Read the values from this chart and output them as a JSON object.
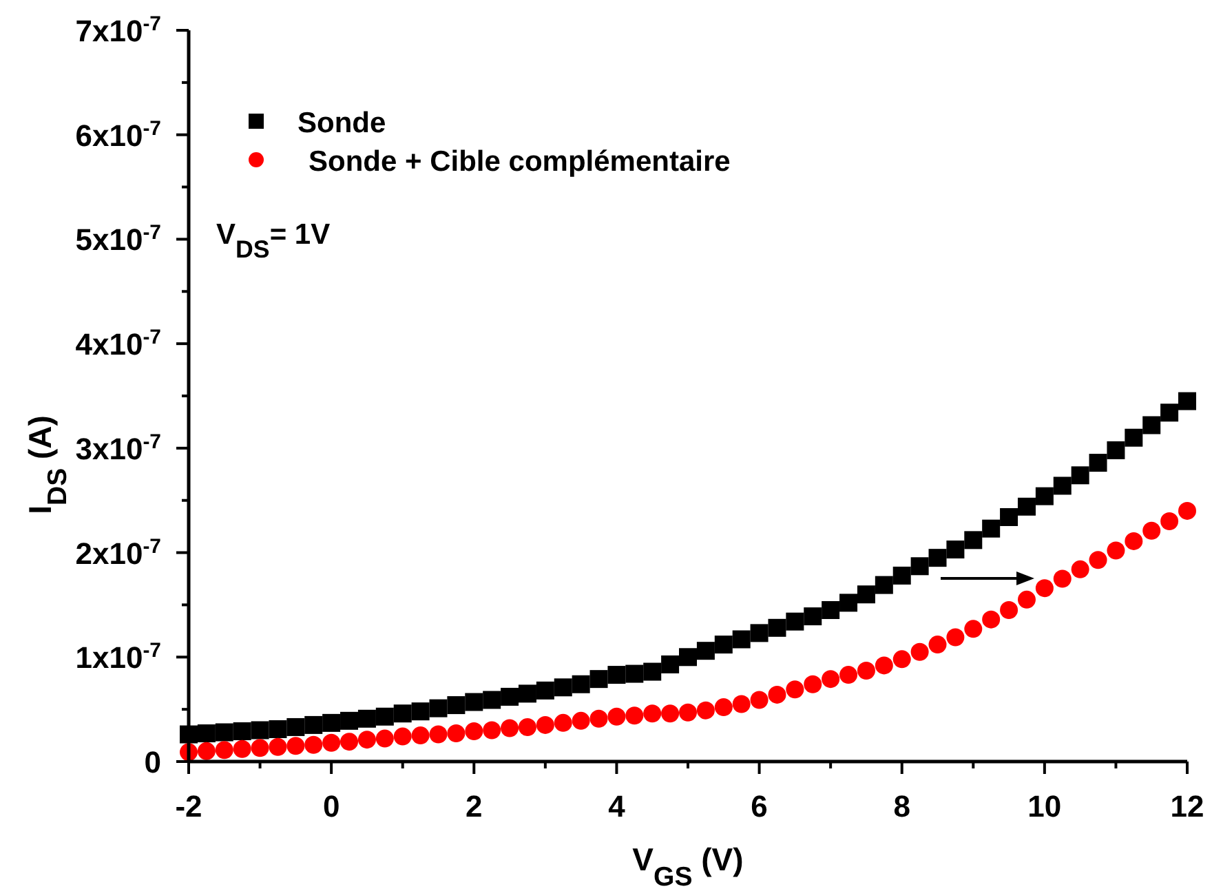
{
  "chart_data": {
    "type": "scatter",
    "xlabel": "V$_{GS}$ (V)",
    "ylabel": "I$_{DS}$ (A)",
    "annotations": [
      "V$_{DS}$= 1V"
    ],
    "xlim": [
      -2,
      12
    ],
    "ylim": [
      0,
      7e-07
    ],
    "xticks": [
      -2,
      {
        "value": -1,
        "label": null
      },
      0,
      {
        "value": 1,
        "label": null
      },
      2,
      {
        "value": 3,
        "label": null
      },
      4,
      {
        "value": 5,
        "label": null
      },
      6,
      {
        "value": 7,
        "label": null
      },
      8,
      {
        "value": 9,
        "label": null
      },
      10,
      {
        "value": 11,
        "label": null
      },
      12
    ],
    "yticks": [
      0,
      {
        "value": 5e-08,
        "label": null
      },
      {
        "value": 1e-07,
        "label": "1x10$^{-7}$"
      },
      {
        "value": 1.5e-07,
        "label": null
      },
      {
        "value": 2e-07,
        "label": "2x10$^{-7}$"
      },
      {
        "value": 2.5e-07,
        "label": null
      },
      {
        "value": 3e-07,
        "label": "3x10$^{-7}$"
      },
      {
        "value": 3.5e-07,
        "label": null
      },
      {
        "value": 4e-07,
        "label": "4x10$^{-7}$"
      },
      {
        "value": 4.5e-07,
        "label": null
      },
      {
        "value": 5e-07,
        "label": "5x10$^{-7}$"
      },
      {
        "value": 5.5e-07,
        "label": null
      },
      {
        "value": 6e-07,
        "label": "6x10$^{-7}$"
      },
      {
        "value": 6.5e-07,
        "label": null
      },
      {
        "value": 7e-07,
        "label": "7x10$^{-7}$"
      }
    ],
    "legend": "top left",
    "x": [
      -2,
      -1.75,
      -1.5,
      -1.25,
      -1,
      -0.75,
      -0.5,
      -0.25,
      0,
      0.25,
      0.5,
      0.75,
      1,
      1.25,
      1.5,
      1.75,
      2,
      2.25,
      2.5,
      2.75,
      3,
      3.25,
      3.5,
      3.75,
      4,
      4.25,
      4.5,
      4.75,
      5,
      5.25,
      5.5,
      5.75,
      6,
      6.25,
      6.5,
      6.75,
      7,
      7.25,
      7.5,
      7.75,
      8,
      8.25,
      8.5,
      8.75,
      9,
      9.25,
      9.5,
      9.75,
      10,
      10.25,
      10.5,
      10.75,
      11,
      11.25,
      11.5,
      11.75,
      12
    ],
    "series": [
      {
        "name": "Sonde",
        "color": "#000000",
        "marker": "square",
        "values": [
          2.6e-08,
          2.7e-08,
          2.8e-08,
          2.9e-08,
          3e-08,
          3.1e-08,
          3.3e-08,
          3.5e-08,
          3.7e-08,
          3.9e-08,
          4.1e-08,
          4.3e-08,
          4.6e-08,
          4.8e-08,
          5.1e-08,
          5.4e-08,
          5.7e-08,
          5.9e-08,
          6.2e-08,
          6.5e-08,
          6.8e-08,
          7.1e-08,
          7.4e-08,
          7.9e-08,
          8.3e-08,
          8.4e-08,
          8.6e-08,
          9.3e-08,
          1e-07,
          1.06e-07,
          1.12e-07,
          1.17e-07,
          1.23e-07,
          1.28e-07,
          1.34e-07,
          1.39e-07,
          1.45e-07,
          1.52e-07,
          1.6e-07,
          1.69e-07,
          1.78e-07,
          1.87e-07,
          1.95e-07,
          2.03e-07,
          2.12e-07,
          2.23e-07,
          2.34e-07,
          2.44e-07,
          2.54e-07,
          2.64e-07,
          2.74e-07,
          2.86e-07,
          2.98e-07,
          3.1e-07,
          3.22e-07,
          3.34e-07,
          3.45e-07
        ]
      },
      {
        "name": "Sonde + Cible complémentaire",
        "color": "#ff0000",
        "marker": "circle",
        "values": [
          9e-09,
          1e-08,
          1.1e-08,
          1.2e-08,
          1.3e-08,
          1.4e-08,
          1.5e-08,
          1.6e-08,
          1.8e-08,
          1.9e-08,
          2.1e-08,
          2.2e-08,
          2.4e-08,
          2.5e-08,
          2.6e-08,
          2.7e-08,
          2.9e-08,
          3e-08,
          3.2e-08,
          3.3e-08,
          3.5e-08,
          3.7e-08,
          3.9e-08,
          4.1e-08,
          4.3e-08,
          4.4e-08,
          4.6e-08,
          4.6e-08,
          4.7e-08,
          4.9e-08,
          5.2e-08,
          5.5e-08,
          5.9e-08,
          6.4e-08,
          6.9e-08,
          7.4e-08,
          7.9e-08,
          8.3e-08,
          8.7e-08,
          9.2e-08,
          9.8e-08,
          1.05e-07,
          1.12e-07,
          1.19e-07,
          1.27e-07,
          1.36e-07,
          1.45e-07,
          1.55e-07,
          1.66e-07,
          1.75e-07,
          1.84e-07,
          1.93e-07,
          2.02e-07,
          2.11e-07,
          2.21e-07,
          2.3e-07,
          2.4e-07
        ]
      }
    ]
  }
}
